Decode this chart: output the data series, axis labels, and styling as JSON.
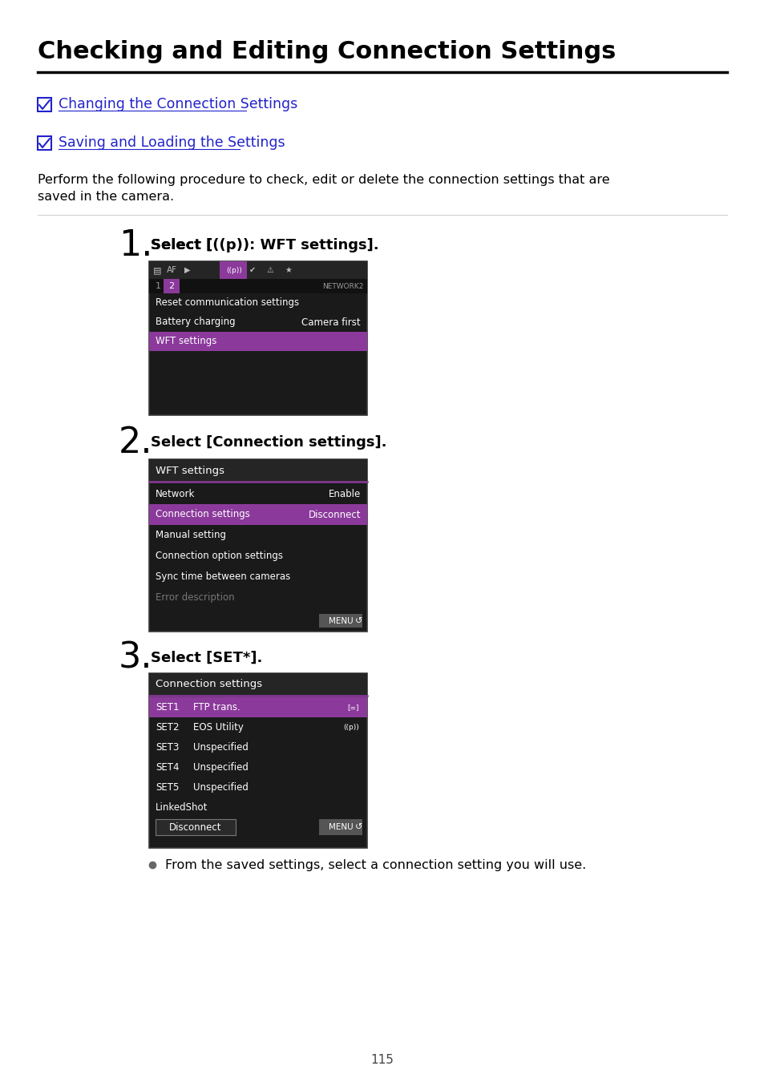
{
  "title": "Checking and Editing Connection Settings",
  "link1": "Changing the Connection Settings",
  "link2": "Saving and Loading the Settings",
  "body_text1": "Perform the following procedure to check, edit or delete the connection settings that are",
  "body_text2": "saved in the camera.",
  "step1_text": "Select [(··p): WFT settings].",
  "step1_text_display": "Select [((p)): WFT settings].",
  "step2_text": "Select [Connection settings].",
  "step3_text": "Select [SET*].",
  "bullet_text": "From the saved settings, select a connection setting you will use.",
  "page_number": "115",
  "bg_color": "#ffffff",
  "title_color": "#000000",
  "link_color": "#2222cc",
  "text_color": "#000000",
  "screen_bg": "#1a1a1a",
  "highlight_purple": "#8B3A9B",
  "screen_dark": "#252525",
  "screen_gray_text": "#777777",
  "screen_white_text": "#ffffff",
  "divider_color": "#cccccc",
  "title_line_color": "#000000"
}
